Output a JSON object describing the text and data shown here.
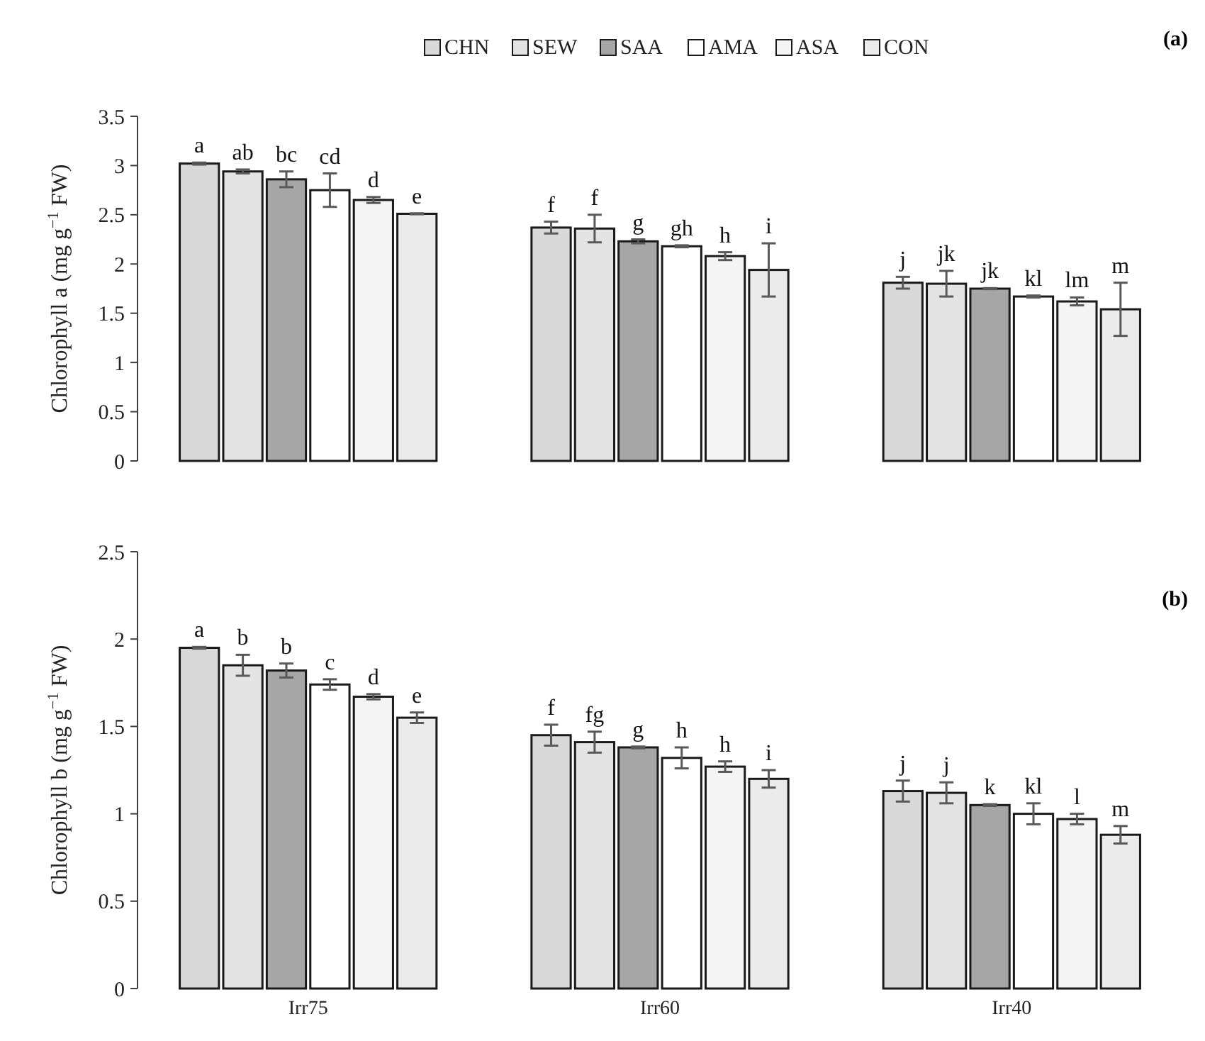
{
  "chart_data": [
    {
      "type": "bar",
      "title": "(a)",
      "ylabel": "Chlorophyll a (mg g$^{−1}$ FW)",
      "categories": [
        null,
        null,
        null
      ],
      "tick_labels": "y",
      "legend": "top",
      "ylim": [
        0,
        3.5
      ],
      "yticks": [
        0,
        0.5,
        1,
        1.5,
        2,
        2.5,
        3,
        3.5
      ],
      "series": [
        {
          "name": "CHN",
          "color": "#d9d9d9",
          "values": [
            3.02,
            2.37,
            1.81
          ],
          "errors": [
            0.01,
            0.06,
            0.06
          ]
        },
        {
          "name": "SEW",
          "color": "#e4e4e4",
          "values": [
            2.94,
            2.36,
            1.8
          ],
          "errors": [
            0.02,
            0.14,
            0.13
          ]
        },
        {
          "name": "SAA",
          "color": "#a6a6a6",
          "values": [
            2.86,
            2.23,
            1.75
          ],
          "errors": [
            0.08,
            0.02,
            0.005
          ]
        },
        {
          "name": "AMA",
          "color": "#ffffff",
          "values": [
            2.75,
            2.18,
            1.67
          ],
          "errors": [
            0.17,
            0.01,
            0.01
          ]
        },
        {
          "name": "ASA",
          "color": "#f4f4f4",
          "values": [
            2.65,
            2.08,
            1.62
          ],
          "errors": [
            0.03,
            0.04,
            0.04
          ]
        },
        {
          "name": "CON",
          "color": "#ebebeb",
          "values": [
            2.51,
            1.94,
            1.54
          ],
          "errors": [
            0.005,
            0.27,
            0.27
          ]
        }
      ],
      "annotations": [
        "a",
        "ab",
        "bc",
        "cd",
        "d",
        "e",
        "f",
        "f",
        "g",
        "gh",
        "h",
        "i",
        "j",
        "jk",
        "jk",
        "kl",
        "lm",
        "m"
      ]
    },
    {
      "type": "bar",
      "title": "(b)",
      "ylabel": "Chlorophyll b (mg g$^{−1}$ FW)",
      "categories": [
        "Irr75",
        "Irr60",
        "Irr40"
      ],
      "ylim": [
        0,
        2.5
      ],
      "yticks": [
        0,
        0.5,
        1,
        1.5,
        2,
        2.5
      ],
      "series": [
        {
          "color": "#d9d9d9",
          "values": [
            1.95,
            1.45,
            1.13
          ],
          "errors": [
            0.005,
            0.06,
            0.06
          ]
        },
        {
          "color": "#e4e4e4",
          "values": [
            1.85,
            1.41,
            1.12
          ],
          "errors": [
            0.06,
            0.06,
            0.06
          ]
        },
        {
          "color": "#a6a6a6",
          "values": [
            1.82,
            1.38,
            1.05
          ],
          "errors": [
            0.04,
            0.005,
            0.005
          ]
        },
        {
          "color": "#ffffff",
          "values": [
            1.74,
            1.32,
            1
          ],
          "errors": [
            0.03,
            0.06,
            0.06
          ]
        },
        {
          "color": "#f4f4f4",
          "values": [
            1.67,
            1.27,
            0.97
          ],
          "errors": [
            0.015,
            0.03,
            0.03
          ]
        },
        {
          "color": "#ebebeb",
          "values": [
            1.55,
            1.2,
            0.88
          ],
          "errors": [
            0.03,
            0.05,
            0.05
          ]
        }
      ],
      "annotations": [
        "a",
        "b",
        "b",
        "c",
        "d",
        "e",
        "f",
        "fg",
        "g",
        "h",
        "h",
        "i",
        "j",
        "j",
        "k",
        "kl",
        "l",
        "m"
      ]
    }
  ]
}
